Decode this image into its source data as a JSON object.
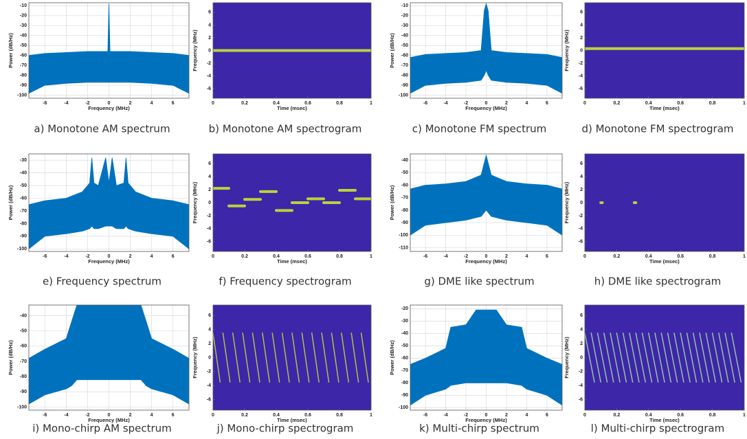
{
  "chart_data": [
    {
      "type": "spectrum",
      "caption": "a) Monotone AM spectrum",
      "xlabel": "Frequency (MHz)",
      "ylabel": "Power (dB/Hz)",
      "color": "#0072bd",
      "grid": true,
      "xlim": [
        -7.5,
        7.5
      ],
      "xticks": [
        -6,
        -4,
        -2,
        0,
        2,
        4,
        6
      ],
      "ylim": [
        -103,
        -7
      ],
      "yticks": [
        -100,
        -90,
        -80,
        -70,
        -60,
        -50,
        -40,
        -30,
        -20,
        -10
      ],
      "x": [
        -7.5,
        -6,
        -4,
        -2,
        -0.1,
        0,
        0.1,
        2,
        4,
        6,
        7.5
      ],
      "values": [
        -60,
        -58,
        -57,
        -56,
        -56,
        -8,
        -56,
        -56,
        -57,
        -58,
        -60
      ],
      "lower": [
        -98,
        -90,
        -88,
        -87,
        -87,
        -87,
        -87,
        -87,
        -88,
        -90,
        -98
      ]
    },
    {
      "type": "spectrogram",
      "caption": "b) Monotone AM spectrogram",
      "xlabel": "Time (msec)",
      "ylabel": "Frequency (MHz)",
      "color": "#b8d43a",
      "background": "#3d26a8",
      "xlim": [
        0,
        1
      ],
      "xticks": [
        0,
        0.2,
        0.4,
        0.6,
        0.8,
        1
      ],
      "ylim": [
        -7.5,
        7.5
      ],
      "yticks": [
        -6,
        -4,
        -2,
        0,
        2,
        4,
        6
      ],
      "segments": [
        {
          "t": [
            0,
            1
          ],
          "f": [
            0,
            0
          ]
        }
      ]
    },
    {
      "type": "spectrum",
      "caption": "c) Monotone FM spectrum",
      "xlabel": "Frequency (MHz)",
      "ylabel": "Power (dB/Hz)",
      "color": "#0072bd",
      "grid": true,
      "xlim": [
        -7.5,
        7.5
      ],
      "xticks": [
        -6,
        -4,
        -2,
        0,
        2,
        4,
        6
      ],
      "ylim": [
        -103,
        -7
      ],
      "yticks": [
        -100,
        -90,
        -80,
        -70,
        -60,
        -50,
        -40,
        -30,
        -20,
        -10
      ],
      "x": [
        -7.5,
        -6,
        -4,
        -2,
        -0.5,
        -0.2,
        0,
        0.2,
        0.5,
        2,
        4,
        6,
        7.5
      ],
      "values": [
        -62,
        -59,
        -58,
        -57,
        -55,
        -15,
        -8,
        -15,
        -55,
        -57,
        -58,
        -59,
        -62
      ],
      "lower": [
        -98,
        -90,
        -88,
        -87,
        -85,
        -80,
        -75,
        -80,
        -85,
        -87,
        -88,
        -90,
        -98
      ]
    },
    {
      "type": "spectrogram",
      "caption": "d) Monotone FM spectrogram",
      "xlabel": "Time (msec)",
      "ylabel": "Frequency (MHz)",
      "color": "#b8d43a",
      "background": "#3d26a8",
      "xlim": [
        0,
        1
      ],
      "xticks": [
        0,
        0.2,
        0.4,
        0.6,
        0.8,
        1
      ],
      "ylim": [
        -7.5,
        7.5
      ],
      "yticks": [
        -6,
        -4,
        -2,
        0,
        2,
        4,
        6
      ],
      "segments": [
        {
          "t": [
            0,
            1
          ],
          "f": [
            0.3,
            0.3
          ]
        }
      ]
    },
    {
      "type": "spectrum",
      "caption": "e) Frequency spectrum",
      "xlabel": "Frequency (MHz)",
      "ylabel": "Power (dB/Hz)",
      "color": "#0072bd",
      "grid": true,
      "xlim": [
        -7.5,
        7.5
      ],
      "xticks": [
        -6,
        -4,
        -2,
        0,
        2,
        4,
        6
      ],
      "ylim": [
        -102,
        -25
      ],
      "yticks": [
        -100,
        -90,
        -80,
        -70,
        -60,
        -50,
        -40,
        -30
      ],
      "x": [
        -7.5,
        -6,
        -4,
        -2.5,
        -1.8,
        -1.6,
        -1.4,
        -1,
        -0.3,
        0,
        0.3,
        0.7,
        1.4,
        1.6,
        1.8,
        2.5,
        4,
        6,
        7.5
      ],
      "values": [
        -65,
        -62,
        -60,
        -55,
        -48,
        -28,
        -48,
        -50,
        -28,
        -48,
        -28,
        -50,
        -48,
        -28,
        -48,
        -55,
        -60,
        -62,
        -65
      ],
      "lower": [
        -100,
        -90,
        -88,
        -86,
        -84,
        -82,
        -84,
        -84,
        -82,
        -82,
        -82,
        -84,
        -84,
        -82,
        -84,
        -86,
        -88,
        -90,
        -100
      ]
    },
    {
      "type": "spectrogram",
      "caption": "f) Frequency spectrogram",
      "xlabel": "Time (msec)",
      "ylabel": "Frequency (MHz)",
      "color": "#b8d43a",
      "background": "#3d26a8",
      "xlim": [
        0,
        1
      ],
      "xticks": [
        0,
        0.2,
        0.4,
        0.6,
        0.8,
        1
      ],
      "ylim": [
        -7.5,
        7.5
      ],
      "yticks": [
        -6,
        -4,
        -2,
        0,
        2,
        4,
        6
      ],
      "segments": [
        {
          "t": [
            0,
            0.1
          ],
          "f": [
            2.2,
            2.2
          ]
        },
        {
          "t": [
            0.1,
            0.2
          ],
          "f": [
            -0.5,
            -0.5
          ]
        },
        {
          "t": [
            0.2,
            0.3
          ],
          "f": [
            0.5,
            0.5
          ]
        },
        {
          "t": [
            0.3,
            0.4
          ],
          "f": [
            1.7,
            1.7
          ]
        },
        {
          "t": [
            0.4,
            0.5
          ],
          "f": [
            -1.2,
            -1.2
          ]
        },
        {
          "t": [
            0.5,
            0.6
          ],
          "f": [
            0,
            0
          ]
        },
        {
          "t": [
            0.6,
            0.7
          ],
          "f": [
            0.6,
            0.6
          ]
        },
        {
          "t": [
            0.7,
            0.8
          ],
          "f": [
            0,
            0
          ]
        },
        {
          "t": [
            0.8,
            0.9
          ],
          "f": [
            1.9,
            1.9
          ]
        },
        {
          "t": [
            0.9,
            1
          ],
          "f": [
            0.6,
            0.6
          ]
        }
      ]
    },
    {
      "type": "spectrum",
      "caption": "g) DME like spectrum",
      "xlabel": "Frequency (MHz)",
      "ylabel": "Power (dB/Hz)",
      "color": "#0072bd",
      "grid": true,
      "xlim": [
        -7.5,
        7.5
      ],
      "xticks": [
        -6,
        -4,
        -2,
        0,
        2,
        4,
        6
      ],
      "ylim": [
        -113,
        -35
      ],
      "yticks": [
        -110,
        -100,
        -90,
        -80,
        -70,
        -60,
        -50,
        -40
      ],
      "x": [
        -7.5,
        -6,
        -4,
        -2,
        -0.5,
        0,
        0.5,
        2,
        4,
        6,
        7.5
      ],
      "values": [
        -63,
        -60,
        -59,
        -57,
        -52,
        -36,
        -52,
        -57,
        -59,
        -60,
        -63
      ],
      "lower": [
        -100,
        -92,
        -90,
        -88,
        -85,
        -80,
        -85,
        -88,
        -90,
        -92,
        -100
      ]
    },
    {
      "type": "spectrogram",
      "caption": "h) DME like spectrogram",
      "xlabel": "Time (msec)",
      "ylabel": "Frequency (MHz)",
      "color": "#b8d43a",
      "background": "#3d26a8",
      "xlim": [
        0,
        1
      ],
      "xticks": [
        0,
        0.2,
        0.4,
        0.6,
        0.8,
        1
      ],
      "ylim": [
        -7.5,
        7.5
      ],
      "yticks": [
        -6,
        -4,
        -2,
        0,
        2,
        4,
        6
      ],
      "segments": [
        {
          "t": [
            0.1,
            0.11
          ],
          "f": [
            0,
            0
          ]
        },
        {
          "t": [
            0.31,
            0.32
          ],
          "f": [
            0,
            0
          ]
        }
      ]
    },
    {
      "type": "spectrum",
      "caption": "i) Mono-chirp AM spectrum",
      "xlabel": "Frequency (MHz)",
      "ylabel": "Power (dB/Hz)",
      "color": "#0072bd",
      "grid": true,
      "xlim": [
        -7.5,
        7.5
      ],
      "xticks": [
        -6,
        -4,
        -2,
        0,
        2,
        4,
        6
      ],
      "ylim": [
        -102,
        -33
      ],
      "yticks": [
        -100,
        -90,
        -80,
        -70,
        -60,
        -50,
        -40
      ],
      "x": [
        -7.5,
        -6,
        -4,
        -3.5,
        -3,
        3,
        3.5,
        4,
        6,
        7.5
      ],
      "values": [
        -68,
        -62,
        -55,
        -44,
        -33,
        -33,
        -44,
        -55,
        -62,
        -68
      ],
      "lower": [
        -98,
        -92,
        -88,
        -86,
        -82,
        -82,
        -86,
        -88,
        -92,
        -98
      ]
    },
    {
      "type": "spectrogram",
      "caption": "j) Mono-chirp spectrogram",
      "xlabel": "Time (msec)",
      "ylabel": "Frequency (MHz)",
      "color": "#b8d43a",
      "background": "#3d26a8",
      "xlim": [
        0,
        1
      ],
      "xticks": [
        0,
        0.2,
        0.4,
        0.6,
        0.8,
        1
      ],
      "ylim": [
        -7.5,
        7.5
      ],
      "yticks": [
        -6,
        -4,
        -2,
        0,
        2,
        4,
        6
      ],
      "segments": [
        {
          "t": [
            0,
            0.045
          ],
          "f": [
            3.5,
            -3.5
          ]
        },
        {
          "t": [
            0.0625,
            0.1075
          ],
          "f": [
            3.5,
            -3.5
          ]
        },
        {
          "t": [
            0.125,
            0.17
          ],
          "f": [
            3.5,
            -3.5
          ]
        },
        {
          "t": [
            0.1875,
            0.2325
          ],
          "f": [
            3.5,
            -3.5
          ]
        },
        {
          "t": [
            0.25,
            0.295
          ],
          "f": [
            3.5,
            -3.5
          ]
        },
        {
          "t": [
            0.3125,
            0.3575
          ],
          "f": [
            3.5,
            -3.5
          ]
        },
        {
          "t": [
            0.375,
            0.42
          ],
          "f": [
            3.5,
            -3.5
          ]
        },
        {
          "t": [
            0.4375,
            0.4825
          ],
          "f": [
            3.5,
            -3.5
          ]
        },
        {
          "t": [
            0.5,
            0.545
          ],
          "f": [
            3.5,
            -3.5
          ]
        },
        {
          "t": [
            0.5625,
            0.6075
          ],
          "f": [
            3.5,
            -3.5
          ]
        },
        {
          "t": [
            0.625,
            0.67
          ],
          "f": [
            3.5,
            -3.5
          ]
        },
        {
          "t": [
            0.6875,
            0.7325
          ],
          "f": [
            3.5,
            -3.5
          ]
        },
        {
          "t": [
            0.75,
            0.795
          ],
          "f": [
            3.5,
            -3.5
          ]
        },
        {
          "t": [
            0.8125,
            0.8575
          ],
          "f": [
            3.5,
            -3.5
          ]
        },
        {
          "t": [
            0.875,
            0.92
          ],
          "f": [
            3.5,
            -3.5
          ]
        },
        {
          "t": [
            0.9375,
            0.9825
          ],
          "f": [
            3.5,
            -3.5
          ]
        }
      ]
    },
    {
      "type": "spectrum",
      "caption": "k) Multi-chirp spectrum",
      "xlabel": "Frequency (MHz)",
      "ylabel": "Power (dB/Hz)",
      "color": "#0072bd",
      "grid": true,
      "xlim": [
        -7.5,
        7.5
      ],
      "xticks": [
        -6,
        -4,
        -2,
        0,
        2,
        4,
        6
      ],
      "ylim": [
        -102,
        -17
      ],
      "yticks": [
        -100,
        -90,
        -80,
        -70,
        -60,
        -50,
        -40,
        -30,
        -20
      ],
      "x": [
        -7.5,
        -6,
        -4,
        -3.5,
        -2,
        -1,
        1,
        2,
        3.5,
        4,
        6,
        7.5
      ],
      "values": [
        -65,
        -60,
        -52,
        -35,
        -33,
        -21,
        -21,
        -33,
        -35,
        -52,
        -60,
        -65
      ],
      "lower": [
        -98,
        -90,
        -85,
        -82,
        -80,
        -80,
        -80,
        -80,
        -82,
        -85,
        -90,
        -98
      ]
    },
    {
      "type": "spectrogram",
      "caption": "l) Multi-chirp spectrogram",
      "xlabel": "Time (msec)",
      "ylabel": "Frequency (MHz)",
      "color": "#9fd3a0",
      "background": "#3d26a8",
      "xlim": [
        0,
        1
      ],
      "xticks": [
        0,
        0.2,
        0.4,
        0.6,
        0.8,
        1
      ],
      "ylim": [
        -7.5,
        7.5
      ],
      "yticks": [
        -6,
        -4,
        -2,
        0,
        2,
        4,
        6
      ],
      "segments": [
        {
          "t": [
            0,
            0.06
          ],
          "f": [
            3.5,
            -3.5
          ]
        },
        {
          "t": [
            0.04,
            0.1
          ],
          "f": [
            3.5,
            -3.5
          ]
        },
        {
          "t": [
            0.08,
            0.14
          ],
          "f": [
            3.5,
            -3.5
          ]
        },
        {
          "t": [
            0.12,
            0.18
          ],
          "f": [
            3.5,
            -3.5
          ]
        },
        {
          "t": [
            0.16,
            0.22
          ],
          "f": [
            3.5,
            -3.5
          ]
        },
        {
          "t": [
            0.2,
            0.26
          ],
          "f": [
            3.5,
            -3.5
          ]
        },
        {
          "t": [
            0.24,
            0.3
          ],
          "f": [
            3.5,
            -3.5
          ]
        },
        {
          "t": [
            0.28,
            0.34
          ],
          "f": [
            3.5,
            -3.5
          ]
        },
        {
          "t": [
            0.32,
            0.38
          ],
          "f": [
            3.5,
            -3.5
          ]
        },
        {
          "t": [
            0.36,
            0.42
          ],
          "f": [
            3.5,
            -3.5
          ]
        },
        {
          "t": [
            0.4,
            0.46
          ],
          "f": [
            3.5,
            -3.5
          ]
        },
        {
          "t": [
            0.44,
            0.5
          ],
          "f": [
            3.5,
            -3.5
          ]
        },
        {
          "t": [
            0.48,
            0.54
          ],
          "f": [
            3.5,
            -3.5
          ]
        },
        {
          "t": [
            0.52,
            0.58
          ],
          "f": [
            3.5,
            -3.5
          ]
        },
        {
          "t": [
            0.56,
            0.62
          ],
          "f": [
            3.5,
            -3.5
          ]
        },
        {
          "t": [
            0.6,
            0.66
          ],
          "f": [
            3.5,
            -3.5
          ]
        },
        {
          "t": [
            0.64,
            0.7
          ],
          "f": [
            3.5,
            -3.5
          ]
        },
        {
          "t": [
            0.68,
            0.74
          ],
          "f": [
            3.5,
            -3.5
          ]
        },
        {
          "t": [
            0.72,
            0.78
          ],
          "f": [
            3.5,
            -3.5
          ]
        },
        {
          "t": [
            0.76,
            0.82
          ],
          "f": [
            3.5,
            -3.5
          ]
        },
        {
          "t": [
            0.8,
            0.86
          ],
          "f": [
            3.5,
            -3.5
          ]
        },
        {
          "t": [
            0.84,
            0.9
          ],
          "f": [
            3.5,
            -3.5
          ]
        },
        {
          "t": [
            0.88,
            0.94
          ],
          "f": [
            3.5,
            -3.5
          ]
        },
        {
          "t": [
            0.92,
            0.98
          ],
          "f": [
            3.5,
            -3.5
          ]
        }
      ]
    }
  ]
}
